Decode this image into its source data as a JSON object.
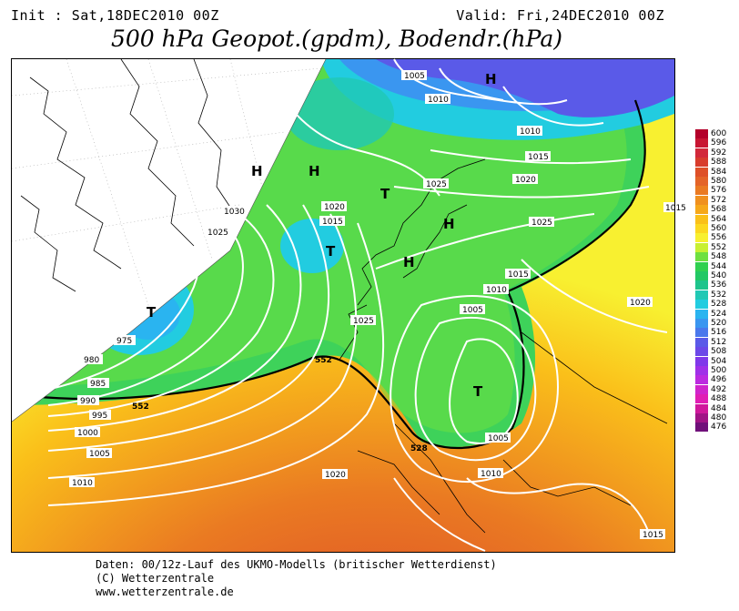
{
  "header": {
    "init": "Init : Sat,18DEC2010 00Z",
    "valid": "Valid: Fri,24DEC2010 00Z",
    "title": "500 hPa Geopot.(gpdm), Bodendr.(hPa)"
  },
  "map": {
    "highs": [
      "H",
      "H",
      "H",
      "H",
      "H"
    ],
    "lows": [
      "T",
      "T",
      "T",
      "T"
    ],
    "isobar_labels": [
      "1005",
      "1010",
      "1010",
      "1015",
      "1020",
      "1025",
      "1025",
      "1030",
      "1025",
      "1020",
      "1015",
      "1015",
      "1010",
      "1005",
      "1025",
      "1020",
      "975",
      "980",
      "985",
      "990",
      "995",
      "1000",
      "1005",
      "1010",
      "1020",
      "1005",
      "1010",
      "1015",
      "1015"
    ],
    "contour_labels": [
      "552",
      "552",
      "528"
    ]
  },
  "legend": {
    "values": [
      "600",
      "596",
      "592",
      "588",
      "584",
      "580",
      "576",
      "572",
      "568",
      "564",
      "560",
      "556",
      "552",
      "548",
      "544",
      "540",
      "536",
      "532",
      "528",
      "524",
      "520",
      "516",
      "512",
      "508",
      "504",
      "500",
      "496",
      "492",
      "488",
      "484",
      "480",
      "476"
    ],
    "colors": [
      "#b4002a",
      "#c81532",
      "#d2283a",
      "#d83c2c",
      "#de5028",
      "#e46428",
      "#ea7a22",
      "#f0901e",
      "#f6a81a",
      "#fac01a",
      "#fcd820",
      "#f8f030",
      "#c8f032",
      "#6ee040",
      "#30d050",
      "#22c864",
      "#1ec48c",
      "#20c8b4",
      "#22cce0",
      "#2ab4f0",
      "#3a96f0",
      "#4a78ec",
      "#5a5ae8",
      "#6c48e8",
      "#8038ea",
      "#a030e8",
      "#bc2ae0",
      "#d024cc",
      "#e01eb4",
      "#d0189c",
      "#a01486",
      "#70107a"
    ]
  },
  "footer": {
    "line1": "Daten: 00/12z-Lauf des UKMO-Modells (britischer Wetterdienst)",
    "line2": "(C) Wetterzentrale",
    "line3": "www.wetterzentrale.de"
  }
}
